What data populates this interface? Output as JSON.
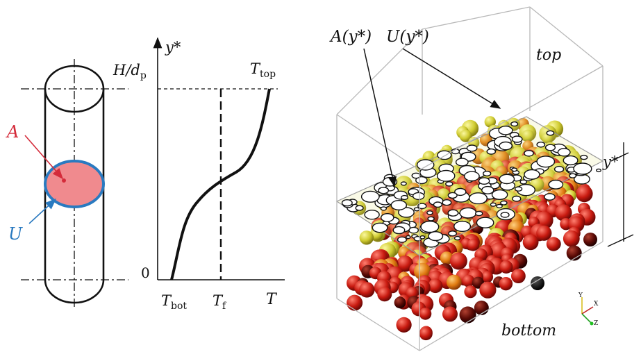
{
  "cylinder": {
    "area_label": "A",
    "perimeter_label": "U",
    "area_color": "#d42b3a",
    "perimeter_color": "#2a7ac0",
    "area_fill": "#f08a8e"
  },
  "profile": {
    "y_axis_label": "y*",
    "height_label": "H/d",
    "height_label_sub": "p",
    "origin_label": "0",
    "x_axis_label": "T",
    "t_bot_label": "T",
    "t_bot_sub": "bot",
    "t_f_label": "T",
    "t_f_sub": "f",
    "t_top_label": "T",
    "t_top_sub": "top"
  },
  "bed": {
    "area_label": "A(y*)",
    "perimeter_label": "U(y*)",
    "top_label": "top",
    "bottom_label": "bottom",
    "y_axis_label": "y*",
    "triad": {
      "y": "Y",
      "x": "X",
      "z": "Z"
    },
    "colors": {
      "hot": "#2a0000",
      "mid": "#d11a10",
      "warm": "#f07a10",
      "cool": "#e8e23a"
    }
  }
}
